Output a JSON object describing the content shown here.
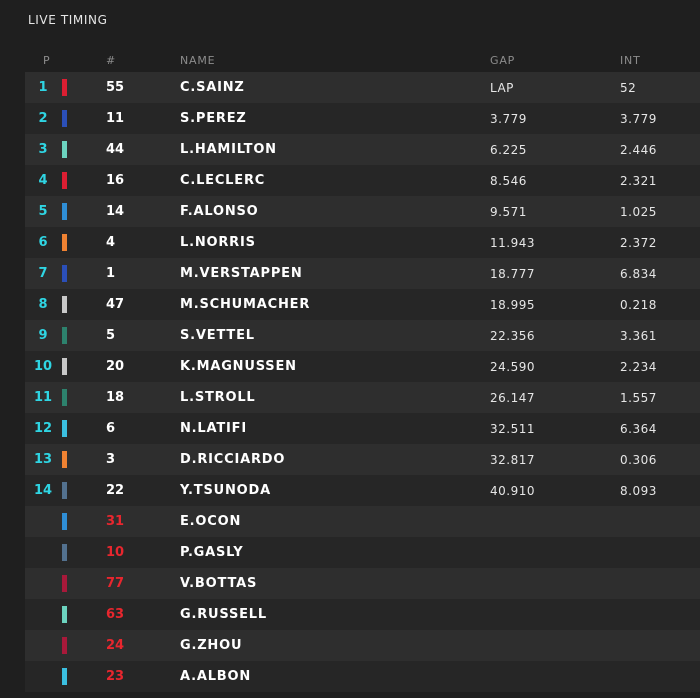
{
  "header": {
    "title": "LIVE TIMING"
  },
  "table": {
    "columns": [
      "P",
      "#",
      "NAME",
      "GAP",
      "INT"
    ],
    "rows": [
      {
        "position": "1",
        "number": "55",
        "name": "C.SAINZ",
        "gap": "LAP",
        "int": "52",
        "color": "#dc1e32"
      },
      {
        "position": "2",
        "number": "11",
        "name": "S.PEREZ",
        "gap": "3.779",
        "int": "3.779",
        "color": "#2b4fb8"
      },
      {
        "position": "3",
        "number": "44",
        "name": "L.HAMILTON",
        "gap": "6.225",
        "int": "2.446",
        "color": "#6cd3bf"
      },
      {
        "position": "4",
        "number": "16",
        "name": "C.LECLERC",
        "gap": "8.546",
        "int": "2.321",
        "color": "#dc1e32"
      },
      {
        "position": "5",
        "number": "14",
        "name": "F.ALONSO",
        "gap": "9.571",
        "int": "1.025",
        "color": "#2f8ed6"
      },
      {
        "position": "6",
        "number": "4",
        "name": "L.NORRIS",
        "gap": "11.943",
        "int": "2.372",
        "color": "#f08232"
      },
      {
        "position": "7",
        "number": "1",
        "name": "M.VERSTAPPEN",
        "gap": "18.777",
        "int": "6.834",
        "color": "#2b4fb8"
      },
      {
        "position": "8",
        "number": "47",
        "name": "M.SCHUMACHER",
        "gap": "18.995",
        "int": "0.218",
        "color": "#c8c8c8"
      },
      {
        "position": "9",
        "number": "5",
        "name": "S.VETTEL",
        "gap": "22.356",
        "int": "3.361",
        "color": "#2d826d"
      },
      {
        "position": "10",
        "number": "20",
        "name": "K.MAGNUSSEN",
        "gap": "24.590",
        "int": "2.234",
        "color": "#c8c8c8"
      },
      {
        "position": "11",
        "number": "18",
        "name": "L.STROLL",
        "gap": "26.147",
        "int": "1.557",
        "color": "#2d826d"
      },
      {
        "position": "12",
        "number": "6",
        "name": "N.LATIFI",
        "gap": "32.511",
        "int": "6.364",
        "color": "#3bbfe0"
      },
      {
        "position": "13",
        "number": "3",
        "name": "D.RICCIARDO",
        "gap": "32.817",
        "int": "0.306",
        "color": "#f08232"
      },
      {
        "position": "14",
        "number": "22",
        "name": "Y.TSUNODA",
        "gap": "40.910",
        "int": "8.093",
        "color": "#53718f"
      },
      {
        "number": "31",
        "name": "E.OCON",
        "color": "#2f8ed6"
      },
      {
        "number": "10",
        "name": "P.GASLY",
        "color": "#53718f"
      },
      {
        "number": "77",
        "name": "V.BOTTAS",
        "color": "#a8193a"
      },
      {
        "number": "63",
        "name": "G.RUSSELL",
        "color": "#6cd3bf"
      },
      {
        "number": "24",
        "name": "G.ZHOU",
        "color": "#a8193a"
      },
      {
        "number": "23",
        "name": "A.ALBON",
        "color": "#3bbfe0"
      }
    ]
  }
}
